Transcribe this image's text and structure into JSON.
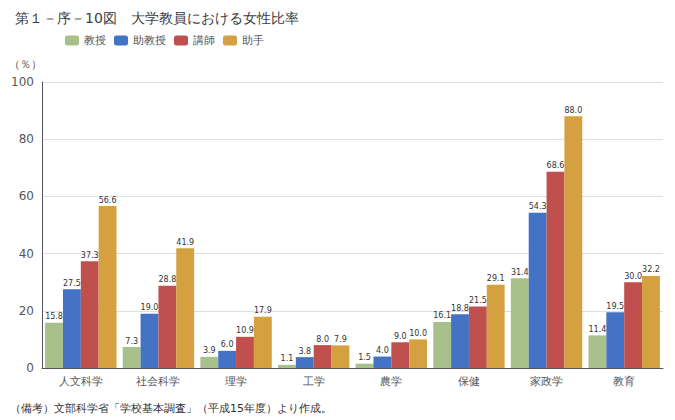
{
  "chart_data": {
    "type": "bar",
    "title": "第１－序－10図　大学教員における女性比率",
    "annotations": [
      "（備考）文部科学省「学校基本調査」（平成15年度）より作成。"
    ],
    "ylabel": "（％）",
    "categories": [
      "人文科学",
      "社会科学",
      "理学",
      "工学",
      "農学",
      "保健",
      "家政学",
      "教育"
    ],
    "series": [
      {
        "name": "教授",
        "color": "#a8c08a",
        "values": [
          15.8,
          7.3,
          3.9,
          1.1,
          1.5,
          16.1,
          31.4,
          11.4
        ]
      },
      {
        "name": "助教授",
        "color": "#4472c4",
        "values": [
          27.5,
          19.0,
          6.0,
          3.8,
          4.0,
          18.8,
          54.3,
          19.5
        ],
        "value_labels": [
          "27.5",
          "19.0",
          "6.0",
          "3.8",
          "4.0",
          "18.8",
          "54.3",
          "19.5"
        ]
      },
      {
        "name": "講師",
        "color": "#c0504d",
        "values": [
          37.3,
          28.8,
          10.9,
          8.0,
          9.0,
          21.5,
          68.6,
          30.0
        ],
        "value_labels": [
          "37.3",
          "28.8",
          "10.9",
          "8.0",
          "9.0",
          "21.5",
          "68.6",
          "30.0"
        ]
      },
      {
        "name": "助手",
        "color": "#d4a040",
        "values": [
          56.6,
          41.9,
          17.9,
          7.9,
          10.0,
          29.1,
          88.0,
          32.2
        ],
        "value_labels": [
          "56.6",
          "41.9",
          "17.9",
          "7.9",
          "10.0",
          "29.1",
          "88.0",
          "32.2"
        ]
      }
    ],
    "ylim": [
      0,
      100
    ],
    "yticks": [
      0,
      20,
      40,
      60,
      80,
      100
    ],
    "grid": true,
    "legend": "upper left",
    "data_labels": true
  }
}
